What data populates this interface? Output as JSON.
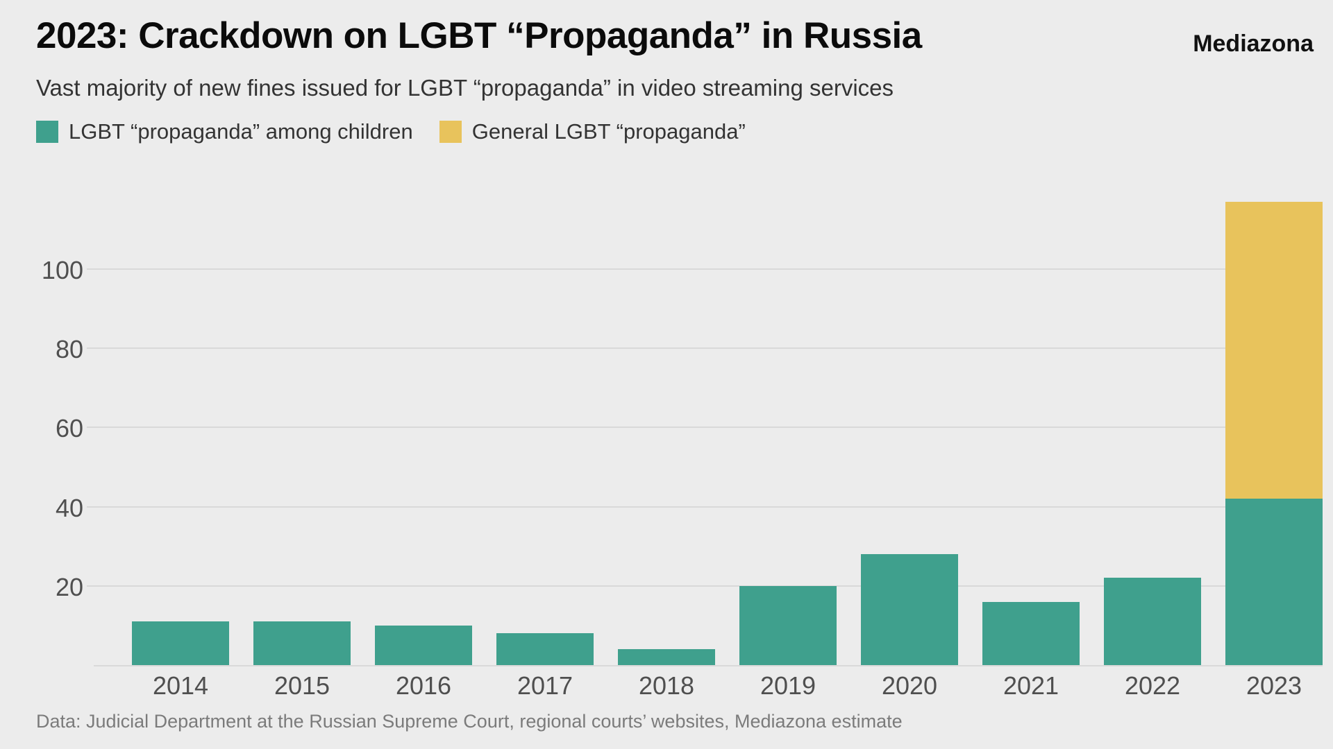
{
  "header": {
    "title": "2023: Crackdown on LGBT “Propaganda” in Russia",
    "brand": "Mediazona",
    "subtitle": "Vast majority of new fines issued for LGBT “propaganda” in video streaming services"
  },
  "legend": [
    {
      "label": "LGBT “propaganda” among children",
      "color": "#3fa08d"
    },
    {
      "label": "General LGBT “propaganda”",
      "color": "#e8c35c"
    }
  ],
  "footer": {
    "source": "Data: Judicial Department at the Russian Supreme Court, regional courts’ websites, Mediazona estimate"
  },
  "colors": {
    "background": "#ececec",
    "gridline": "#d9d9d9",
    "teal": "#3fa08d",
    "yellow": "#e8c35c"
  },
  "chart_data": {
    "type": "bar",
    "stacked": true,
    "title": "2023: Crackdown on LGBT “Propaganda” in Russia",
    "subtitle": "Vast majority of new fines issued for LGBT “propaganda” in video streaming services",
    "categories": [
      "2014",
      "2015",
      "2016",
      "2017",
      "2018",
      "2019",
      "2020",
      "2021",
      "2022",
      "2023"
    ],
    "series": [
      {
        "name": "LGBT “propaganda” among children",
        "color": "#3fa08d",
        "values": [
          11,
          11,
          10,
          8,
          4,
          20,
          28,
          16,
          22,
          42
        ]
      },
      {
        "name": "General LGBT “propaganda”",
        "color": "#e8c35c",
        "values": [
          0,
          0,
          0,
          0,
          0,
          0,
          0,
          0,
          0,
          75
        ]
      }
    ],
    "totals": [
      11,
      11,
      10,
      8,
      4,
      20,
      28,
      16,
      22,
      117
    ],
    "yticks": [
      20,
      40,
      60,
      80,
      100
    ],
    "ylim": [
      0,
      118
    ],
    "xlabel": "",
    "ylabel": "",
    "grid": true,
    "legend_position": "top",
    "source": "Data: Judicial Department at the Russian Supreme Court, regional courts’ websites, Mediazona estimate"
  }
}
